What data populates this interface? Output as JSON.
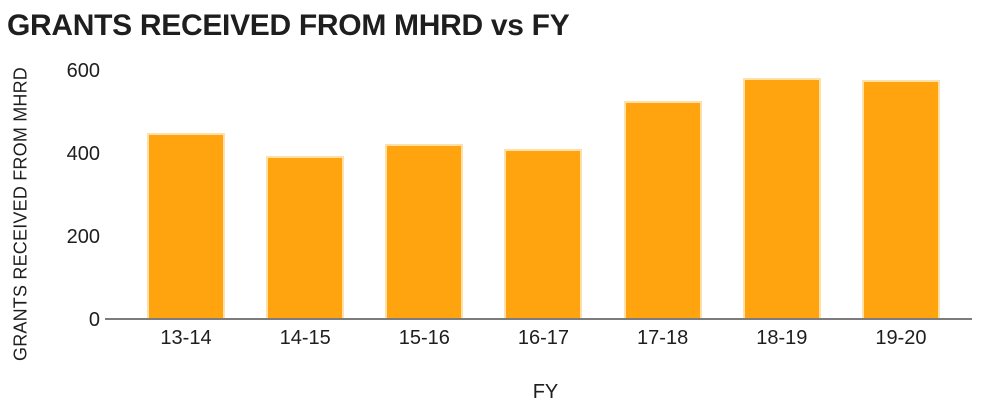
{
  "chart_data": {
    "type": "bar",
    "title": "GRANTS RECEIVED FROM MHRD vs FY",
    "xlabel": "FY",
    "ylabel": "GRANTS RECEIVED FROM MHRD",
    "categories": [
      "13-14",
      "14-15",
      "15-16",
      "16-17",
      "17-18",
      "18-19",
      "19-20"
    ],
    "values": [
      449,
      395,
      423,
      411,
      527,
      582,
      576
    ],
    "ylim": [
      0,
      600
    ],
    "yticks": [
      0,
      200,
      400,
      600
    ],
    "grid": false,
    "legend": false,
    "layout": {
      "legend_position": "none",
      "background": "plain-white",
      "baseline_only_axis": true
    },
    "colors": {
      "bar": "#FFA30E",
      "bar_border": "#FFE0A8",
      "axis_line": "#7C7C7C",
      "text": "#1E1E1E",
      "background": "#FFFFFF"
    }
  }
}
